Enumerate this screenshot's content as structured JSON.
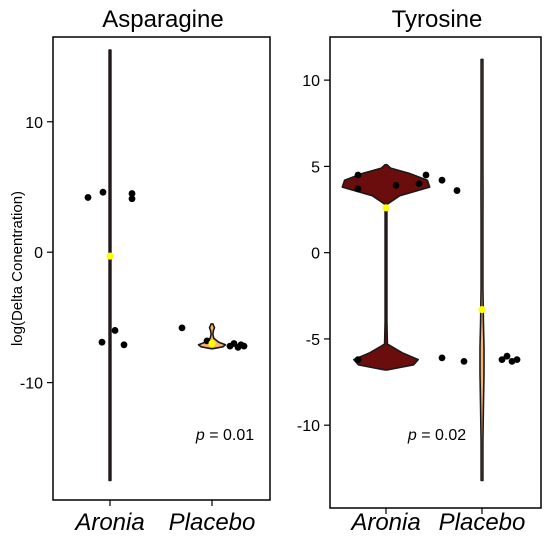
{
  "chart_data": [
    {
      "type": "violin",
      "title": "Asparagine",
      "ylabel": "log(Delta Conentration)",
      "ylim": [
        -19,
        16.5
      ],
      "yticks": [
        10,
        0,
        -10
      ],
      "categories": [
        "Aronia",
        "Placebo"
      ],
      "annotation": {
        "p_label": "p",
        "p_value": "= 0.01"
      },
      "colors": {
        "Aronia": "#6b0d0d",
        "Placebo": "#fcb46a",
        "median": "#ffff00",
        "points": "#000000"
      },
      "series": [
        {
          "category": "Aronia",
          "median": -0.3,
          "points": [
            [
              -0.22,
              4.2
            ],
            [
              -0.07,
              4.6
            ],
            [
              0.22,
              4.5
            ],
            [
              0.22,
              4.1
            ],
            [
              -0.08,
              -6.9
            ],
            [
              0.05,
              -6.0
            ],
            [
              0.14,
              -7.1
            ]
          ],
          "density": [
            [
              -17.5,
              0.004
            ],
            [
              -10,
              0.04
            ],
            [
              -5,
              0.07
            ],
            [
              0,
              0.08
            ],
            [
              5,
              0.07
            ],
            [
              10,
              0.04
            ],
            [
              15.5,
              0.004
            ]
          ]
        },
        {
          "category": "Placebo",
          "median": -7.0,
          "points": [
            [
              -0.3,
              -5.8
            ],
            [
              -0.05,
              -6.8
            ],
            [
              0.18,
              -7.2
            ],
            [
              0.22,
              -7.0
            ],
            [
              0.26,
              -7.3
            ],
            [
              0.29,
              -7.1
            ],
            [
              0.32,
              -7.2
            ]
          ],
          "density": [
            [
              -7.4,
              0.02
            ],
            [
              -7.25,
              0.6
            ],
            [
              -7.1,
              0.75
            ],
            [
              -6.9,
              0.38
            ],
            [
              -6.6,
              0.1
            ],
            [
              -6.3,
              0.05
            ],
            [
              -6.0,
              0.08
            ],
            [
              -5.8,
              0.14
            ],
            [
              -5.6,
              0.08
            ],
            [
              -5.5,
              0.02
            ]
          ]
        }
      ]
    },
    {
      "type": "violin",
      "title": "Tyrosine",
      "ylabel": "",
      "ylim": [
        -14.8,
        12.5
      ],
      "yticks": [
        10,
        5,
        0,
        -5,
        -10
      ],
      "categories": [
        "Aronia",
        "Placebo"
      ],
      "annotation": {
        "p_label": "p",
        "p_value": "= 0.02"
      },
      "colors": {
        "Aronia": "#6b0d0d",
        "Placebo": "#fcb46a",
        "median": "#ffff00",
        "points": "#000000"
      },
      "series": [
        {
          "category": "Aronia",
          "median": 2.6,
          "points": [
            [
              -0.28,
              4.5
            ],
            [
              -0.28,
              3.7
            ],
            [
              0.1,
              3.9
            ],
            [
              0.33,
              4.0
            ],
            [
              0.4,
              4.5
            ],
            [
              -0.28,
              -6.2
            ]
          ],
          "density": [
            [
              -6.8,
              0.02
            ],
            [
              -6.5,
              0.6
            ],
            [
              -6.2,
              0.7
            ],
            [
              -5.8,
              0.35
            ],
            [
              -5.3,
              0.03
            ],
            [
              -4,
              0.01
            ],
            [
              0,
              0.01
            ],
            [
              2.8,
              0.02
            ],
            [
              3.3,
              0.3
            ],
            [
              3.8,
              0.95
            ],
            [
              4.2,
              0.9
            ],
            [
              4.6,
              0.5
            ],
            [
              4.9,
              0.1
            ],
            [
              5.1,
              0.01
            ]
          ]
        },
        {
          "category": "Placebo",
          "median": -3.3,
          "points": [
            [
              -0.4,
              4.2
            ],
            [
              -0.25,
              3.6
            ],
            [
              -0.4,
              -6.1
            ],
            [
              -0.18,
              -6.3
            ],
            [
              0.2,
              -6.2
            ],
            [
              0.25,
              -6.0
            ],
            [
              0.3,
              -6.3
            ],
            [
              0.35,
              -6.2
            ]
          ],
          "density": [
            [
              -13.2,
              0.01
            ],
            [
              -11,
              0.06
            ],
            [
              -9,
              0.1
            ],
            [
              -7,
              0.14
            ],
            [
              -5.5,
              0.14
            ],
            [
              -4,
              0.1
            ],
            [
              -2,
              0.06
            ],
            [
              0,
              0.05
            ],
            [
              2,
              0.06
            ],
            [
              3.5,
              0.07
            ],
            [
              5,
              0.05
            ],
            [
              7,
              0.02
            ],
            [
              9,
              0.01
            ],
            [
              11.2,
              0.005
            ]
          ]
        }
      ]
    }
  ]
}
